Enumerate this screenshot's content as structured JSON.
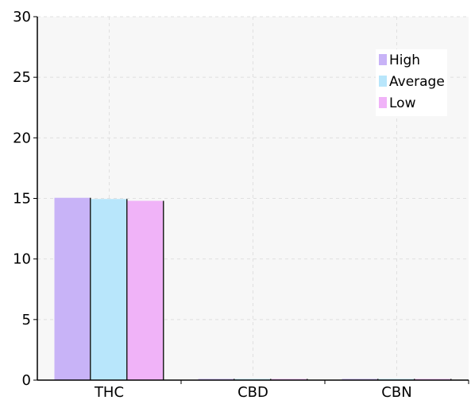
{
  "chart_data": {
    "type": "bar",
    "categories": [
      "THC",
      "CBD",
      "CBN"
    ],
    "series": [
      {
        "name": "High",
        "values": [
          15.05,
          0.1,
          0.1
        ],
        "color": "#c8b3f7"
      },
      {
        "name": "Average",
        "values": [
          14.95,
          0.07,
          0.05
        ],
        "color": "#b8e6fb"
      },
      {
        "name": "Low",
        "values": [
          14.8,
          0.08,
          0.05
        ],
        "color": "#f0b3f8"
      }
    ],
    "ylim": [
      0,
      30
    ],
    "yticks": [
      "0",
      "5",
      "10",
      "15",
      "20",
      "25",
      "30"
    ],
    "grid": true,
    "legend_position": "top-right",
    "plot_background": "#f7f7f7",
    "grid_color": "#e0e0e0"
  }
}
